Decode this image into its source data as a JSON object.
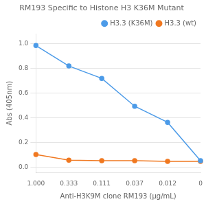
{
  "chart_data": {
    "type": "line",
    "title": "RM193 Specific to Histone H3 K36M Mutant",
    "x_label": "Anti-H3K9M clone RM193 (µg/mL)",
    "y_label": "Abs (405nm)",
    "categories": [
      "1.000",
      "0.333",
      "0.111",
      "0.037",
      "0.012",
      "0"
    ],
    "series": [
      {
        "name": "H3.3 (K36M)",
        "color": "#4C9BE8",
        "marker": "circle",
        "values": [
          0.985,
          0.82,
          0.72,
          0.495,
          0.365,
          0.055
        ]
      },
      {
        "name": "H3.3 (wt)",
        "color": "#F07820",
        "marker": "circle",
        "values": [
          0.105,
          0.06,
          0.055,
          0.055,
          0.05,
          0.05
        ]
      }
    ],
    "ylim": [
      -0.04,
      1.08
    ],
    "yticks": [
      {
        "value": 0,
        "label": "0.0"
      },
      0.2,
      0.4,
      0.6,
      0.8,
      {
        "value": 1,
        "label": "1.0"
      }
    ],
    "grid": true,
    "legend": "upper right"
  }
}
